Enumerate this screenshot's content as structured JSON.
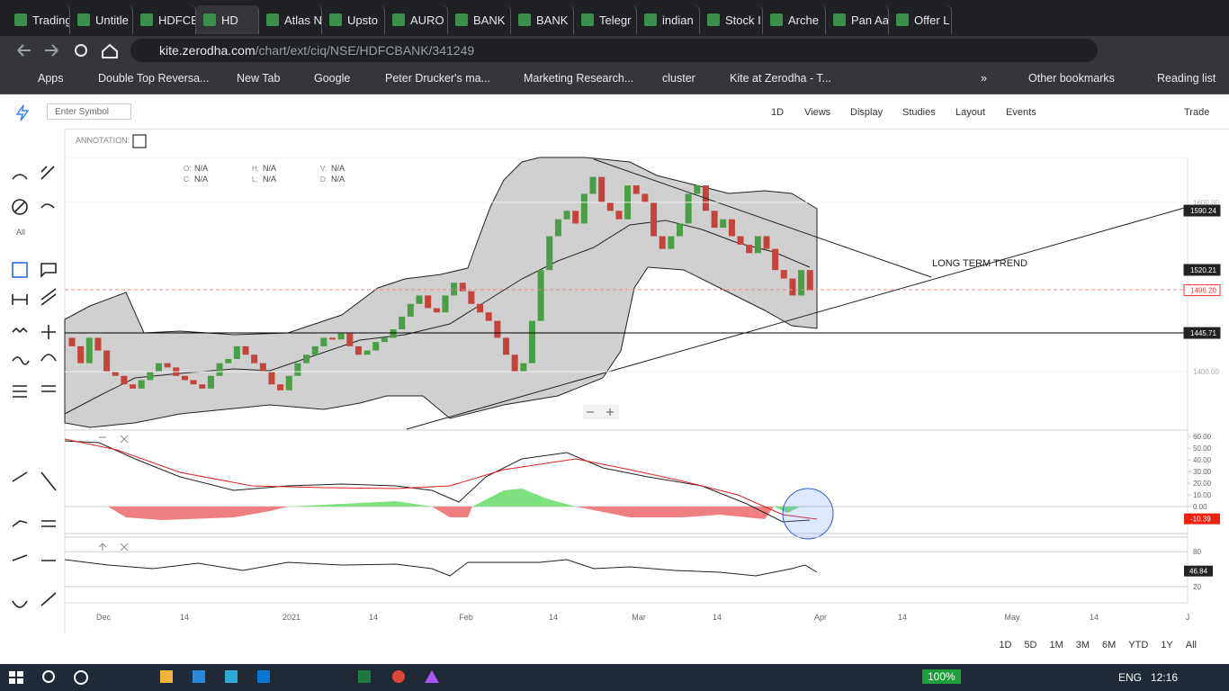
{
  "tabs": [
    "Trading",
    "Untitle",
    "HDFCB",
    "HD",
    "Atlas N",
    "Upsto",
    "AURO",
    "BANK",
    "BANK",
    "Telegr",
    "indian",
    "Stock I",
    "Arche",
    "Pan Aa",
    "Offer L"
  ],
  "address": {
    "host": "kite.zerodha.com",
    "path": "/chart/ext/ciq/NSE/HDFCBANK/341249"
  },
  "bookmarks": [
    "Apps",
    "Double Top Reversa...",
    "New Tab",
    "Google",
    "Peter Drucker's ma...",
    "Marketing Research...",
    "cluster",
    "Kite at Zerodha - T..."
  ],
  "bookmarks_more": "»",
  "other_bookmarks": "Other bookmarks",
  "reading_list": "Reading list",
  "toolbar": {
    "symbol_placeholder": "Enter Symbol",
    "menus": [
      "1D",
      "Views",
      "Display",
      "Studies",
      "Layout",
      "Events"
    ],
    "trade": "Trade"
  },
  "sidebar_all": "All",
  "annotation_label": "ANNOTATION:",
  "ohlc": [
    {
      "key": "O:",
      "value": "N/A"
    },
    {
      "key": "H:",
      "value": "N/A"
    },
    {
      "key": "V:",
      "value": "N/A"
    },
    {
      "key": "C:",
      "value": "N/A"
    },
    {
      "key": "L:",
      "value": "N/A"
    },
    {
      "key": "D:",
      "value": "N/A"
    }
  ],
  "chart_data": {
    "type": "candlestick",
    "up_color": "#4a9e46",
    "down_color": "#c4433b",
    "open": [
      1440,
      1430,
      1410,
      1440,
      1425,
      1400,
      1395,
      1385,
      1380,
      1390,
      1400,
      1410,
      1405,
      1395,
      1390,
      1385,
      1380,
      1395,
      1410,
      1415,
      1430,
      1420,
      1410,
      1400,
      1385,
      1378,
      1395,
      1410,
      1420,
      1430,
      1440,
      1438,
      1445,
      1430,
      1420,
      1425,
      1435,
      1440,
      1450,
      1465,
      1480,
      1490,
      1475,
      1470,
      1490,
      1505,
      1495,
      1480,
      1470,
      1460,
      1440,
      1420,
      1400,
      1410,
      1460,
      1520,
      1560,
      1580,
      1590,
      1575,
      1610,
      1630,
      1600,
      1590,
      1580,
      1620,
      1610,
      1600,
      1560,
      1545,
      1560,
      1575,
      1610,
      1620,
      1590,
      1570,
      1580,
      1560,
      1550,
      1540,
      1560,
      1545,
      1520,
      1510,
      1490,
      1520
    ],
    "close": [
      1430,
      1410,
      1440,
      1425,
      1400,
      1395,
      1385,
      1380,
      1390,
      1400,
      1410,
      1405,
      1395,
      1390,
      1385,
      1380,
      1395,
      1410,
      1415,
      1430,
      1420,
      1410,
      1400,
      1385,
      1378,
      1395,
      1410,
      1420,
      1430,
      1440,
      1438,
      1445,
      1430,
      1420,
      1425,
      1435,
      1440,
      1450,
      1465,
      1480,
      1490,
      1475,
      1470,
      1490,
      1505,
      1495,
      1480,
      1470,
      1460,
      1440,
      1420,
      1400,
      1410,
      1460,
      1520,
      1560,
      1580,
      1590,
      1575,
      1610,
      1630,
      1600,
      1590,
      1580,
      1620,
      1610,
      1600,
      1560,
      1545,
      1560,
      1575,
      1610,
      1620,
      1590,
      1570,
      1580,
      1560,
      1550,
      1540,
      1560,
      1545,
      1520,
      1510,
      1490,
      1520,
      1496
    ],
    "ylim": [
      1331,
      1653
    ],
    "yticks": [
      {
        "value": 1400,
        "label": "1400.00"
      },
      {
        "value": 1600,
        "label": "1600.00"
      }
    ],
    "price_tags": [
      {
        "value": 1590.24,
        "label": "1590.24"
      },
      {
        "value": 1520.21,
        "label": "1520.21"
      },
      {
        "value": 1496.2,
        "label": "1496.20"
      },
      {
        "value": 1445.71,
        "label": "1445.71"
      }
    ],
    "annotation": "LONG TERM TREND",
    "x_labels": [
      "Dec",
      "14",
      "2021",
      "14",
      "Feb",
      "14",
      "Mar",
      "14",
      "Apr",
      "14",
      "May",
      "14",
      "J"
    ]
  },
  "macd": {
    "ylim": [
      -23,
      64
    ],
    "yticks": [
      {
        "value": 60,
        "label": "60.00"
      },
      {
        "value": 50,
        "label": "50.00"
      },
      {
        "value": 40,
        "label": "40.00"
      },
      {
        "value": 30,
        "label": "30.00"
      },
      {
        "value": 20,
        "label": "20.00"
      },
      {
        "value": 10,
        "label": "10.00"
      },
      {
        "value": 0,
        "label": "0.00"
      }
    ],
    "tag": -10.39
  },
  "rsi": {
    "ylim": [
      0,
      105
    ],
    "yticks": [
      80,
      20
    ],
    "tag": 46.84
  },
  "ranges": [
    "1D",
    "5D",
    "1M",
    "3M",
    "6M",
    "YTD",
    "1Y",
    "All"
  ],
  "taskbar": {
    "zoom": "100%",
    "lang": "ENG",
    "time": "12:16"
  }
}
